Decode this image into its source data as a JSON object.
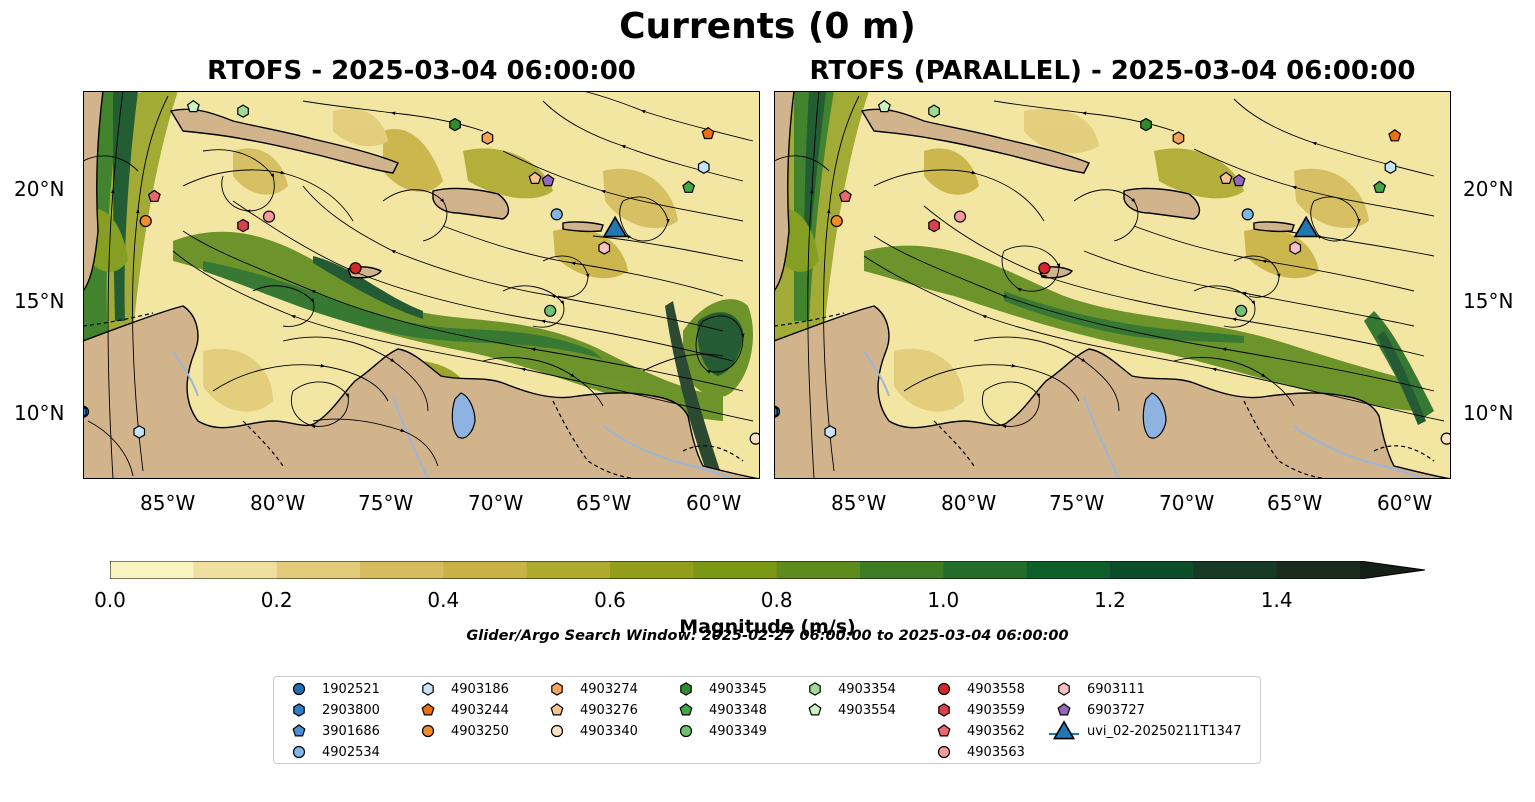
{
  "figure": {
    "title": "Currents (0 m)",
    "search_window": "Glider/Argo Search Window: 2025-02-27 06:00:00 to 2025-03-04 06:00:00"
  },
  "maps": [
    {
      "title": "RTOFS - 2025-03-04 06:00:00"
    },
    {
      "title": "RTOFS (PARALLEL) - 2025-03-04 06:00:00"
    }
  ],
  "axes": {
    "lon_labels": [
      "85°W",
      "80°W",
      "75°W",
      "70°W",
      "65°W",
      "60°W"
    ],
    "lat_labels": [
      "20°N",
      "15°N",
      "10°N"
    ],
    "lon_range": [
      -89.5,
      -58.2
    ],
    "lat_range": [
      7.1,
      24.4
    ]
  },
  "colorbar": {
    "label": "Magnitude (m/s)",
    "ticks": [
      "0.0",
      "0.2",
      "0.4",
      "0.6",
      "0.8",
      "1.0",
      "1.2",
      "1.4"
    ],
    "range": [
      0,
      1.5
    ],
    "extend": "max",
    "colors": [
      "#fbf4c0",
      "#efe0a0",
      "#e2cc7a",
      "#d5bc5e",
      "#c8b245",
      "#aeaa2f",
      "#939e1c",
      "#7a9816",
      "#5f8c1e",
      "#3d7c25",
      "#236e28",
      "#0f5f2b",
      "#0e4d2a",
      "#173a26",
      "#1b2c1f",
      "#151f15"
    ]
  },
  "legend": {
    "items": [
      {
        "label": "1902521",
        "marker": "circle",
        "color": "#1f6fb4"
      },
      {
        "label": "2903800",
        "marker": "hexagon",
        "color": "#2f7ec7"
      },
      {
        "label": "3901686",
        "marker": "pentagon",
        "color": "#4a90d0"
      },
      {
        "label": "4902534",
        "marker": "circle",
        "color": "#7fb6e3"
      },
      {
        "label": "4903186",
        "marker": "hexagon",
        "color": "#c7e3f7"
      },
      {
        "label": "4903244",
        "marker": "pentagon",
        "color": "#ee6f10"
      },
      {
        "label": "4903250",
        "marker": "circle",
        "color": "#f58a2a"
      },
      {
        "label": "4903274",
        "marker": "hexagon",
        "color": "#f6a35a"
      },
      {
        "label": "4903276",
        "marker": "pentagon",
        "color": "#fbc38f"
      },
      {
        "label": "4903340",
        "marker": "circle",
        "color": "#fde1c4"
      },
      {
        "label": "4903345",
        "marker": "hexagon",
        "color": "#2e8b2e"
      },
      {
        "label": "4903348",
        "marker": "pentagon",
        "color": "#43a843"
      },
      {
        "label": "4903349",
        "marker": "circle",
        "color": "#6fc06f"
      },
      {
        "label": "4903354",
        "marker": "hexagon",
        "color": "#9fdc92"
      },
      {
        "label": "4903554",
        "marker": "pentagon",
        "color": "#cbf2c0"
      },
      {
        "label": "4903558",
        "marker": "circle",
        "color": "#d62728"
      },
      {
        "label": "4903559",
        "marker": "hexagon",
        "color": "#d9424a"
      },
      {
        "label": "4903562",
        "marker": "pentagon",
        "color": "#ea6870"
      },
      {
        "label": "4903563",
        "marker": "circle",
        "color": "#f49a9a"
      },
      {
        "label": "6903111",
        "marker": "hexagon",
        "color": "#f9c0c4"
      },
      {
        "label": "6903727",
        "marker": "pentagon",
        "color": "#9467bd"
      },
      {
        "label": "uvi_02-20250211T1347",
        "marker": "triangle",
        "color": "#1f77b4"
      }
    ]
  },
  "observations": [
    {
      "id": "1902521",
      "lon": -89.5,
      "lat": 10.1,
      "lon2": -89.5,
      "lat2": 10.1
    },
    {
      "id": "2903800",
      "lon": -89.6,
      "lat": 10.1,
      "lon2": -89.6,
      "lat2": 10.1
    },
    {
      "id": "4903186",
      "lon": -86.9,
      "lat": 9.2,
      "lon2": -86.9,
      "lat2": 9.2
    },
    {
      "id": "4902534",
      "lon": -67.6,
      "lat": 18.9,
      "lon2": -67.6,
      "lat2": 18.9
    },
    {
      "id": "4903244",
      "lon": -60.6,
      "lat": 22.5,
      "lon2": -60.8,
      "lat2": 22.4
    },
    {
      "id": "4903250",
      "lon": -86.6,
      "lat": 18.6,
      "lon2": -86.6,
      "lat2": 18.6
    },
    {
      "id": "4903274",
      "lon": -70.8,
      "lat": 22.3,
      "lon2": -70.8,
      "lat2": 22.3
    },
    {
      "id": "4903276",
      "lon": -68.6,
      "lat": 20.5,
      "lon2": -68.6,
      "lat2": 20.5
    },
    {
      "id": "4903340",
      "lon": -58.4,
      "lat": 8.9,
      "lon2": -58.4,
      "lat2": 8.9
    },
    {
      "id": "4903345",
      "lon": -72.3,
      "lat": 22.9,
      "lon2": -72.3,
      "lat2": 22.9
    },
    {
      "id": "4903348",
      "lon": -61.5,
      "lat": 20.1,
      "lon2": -61.5,
      "lat2": 20.1
    },
    {
      "id": "4903349",
      "lon": -67.9,
      "lat": 14.6,
      "lon2": -67.9,
      "lat2": 14.6
    },
    {
      "id": "4903354",
      "lon": -82.1,
      "lat": 23.5,
      "lon2": -82.1,
      "lat2": 23.5
    },
    {
      "id": "4903554",
      "lon": -84.4,
      "lat": 23.7,
      "lon2": -84.4,
      "lat2": 23.7
    },
    {
      "id": "4903558",
      "lon": -76.9,
      "lat": 16.5,
      "lon2": -77.0,
      "lat2": 16.5
    },
    {
      "id": "4903559",
      "lon": -82.1,
      "lat": 18.4,
      "lon2": -82.1,
      "lat2": 18.4
    },
    {
      "id": "4903562",
      "lon": -86.2,
      "lat": 19.7,
      "lon2": -86.2,
      "lat2": 19.7
    },
    {
      "id": "4903563",
      "lon": -80.9,
      "lat": 18.8,
      "lon2": -80.9,
      "lat2": 18.8
    },
    {
      "id": "6903111",
      "lon": -65.4,
      "lat": 17.4,
      "lon2": -65.4,
      "lat2": 17.4
    },
    {
      "id": "6903727",
      "lon": -68.0,
      "lat": 20.4,
      "lon2": -68.0,
      "lat2": 20.4
    },
    {
      "id": "4903186b",
      "lon": -60.8,
      "lat": 21.0,
      "lon2": -61.0,
      "lat2": 21.0
    },
    {
      "id": "uvi_02-20250211T1347",
      "lon": -64.9,
      "lat": 18.2,
      "lon2": -64.9,
      "lat2": 18.2
    }
  ]
}
